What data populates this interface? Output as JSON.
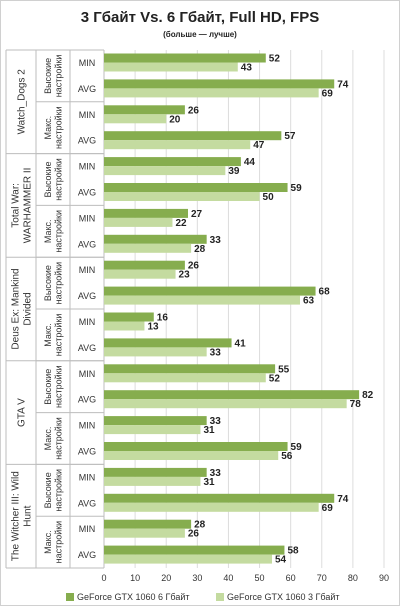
{
  "chart_data": {
    "type": "bar",
    "orientation": "horizontal",
    "title": "3 Гбайт Vs. 6 Гбайт, Full HD, FPS",
    "subtitle": "(больше — лучше)",
    "xlim": [
      0,
      90
    ],
    "xticks": [
      0,
      10,
      20,
      30,
      40,
      50,
      60,
      70,
      80,
      90
    ],
    "grid": true,
    "legend_position": "bottom",
    "colors": {
      "series_6gb": "#86ad4e",
      "series_3gb": "#c4dba0"
    },
    "series": [
      {
        "name": "GeForce GTX 1060 6 Гбайт"
      },
      {
        "name": "GeForce GTX 1060 3 Гбайт"
      }
    ],
    "games": [
      {
        "name": [
          "Watch_Dogs 2"
        ],
        "settings": [
          {
            "label": [
              "Высокие",
              "настройки"
            ],
            "rows": [
              {
                "metric": "MIN",
                "values": [
                  52,
                  43
                ]
              },
              {
                "metric": "AVG",
                "values": [
                  74,
                  69
                ]
              }
            ]
          },
          {
            "label": [
              "Макс.",
              "настройки"
            ],
            "rows": [
              {
                "metric": "MIN",
                "values": [
                  26,
                  20
                ]
              },
              {
                "metric": "AVG",
                "values": [
                  57,
                  47
                ]
              }
            ]
          }
        ]
      },
      {
        "name": [
          "Total War:",
          "WARHAMMER II"
        ],
        "settings": [
          {
            "label": [
              "Высокие",
              "настройки"
            ],
            "rows": [
              {
                "metric": "MIN",
                "values": [
                  44,
                  39
                ]
              },
              {
                "metric": "AVG",
                "values": [
                  59,
                  50
                ]
              }
            ]
          },
          {
            "label": [
              "Макс.",
              "настройки"
            ],
            "rows": [
              {
                "metric": "MIN",
                "values": [
                  27,
                  22
                ]
              },
              {
                "metric": "AVG",
                "values": [
                  33,
                  28
                ]
              }
            ]
          }
        ]
      },
      {
        "name": [
          "Deus Ex: Mankind",
          "Divided"
        ],
        "settings": [
          {
            "label": [
              "Высокие",
              "настройки"
            ],
            "rows": [
              {
                "metric": "MIN",
                "values": [
                  26,
                  23
                ]
              },
              {
                "metric": "AVG",
                "values": [
                  68,
                  63
                ]
              }
            ]
          },
          {
            "label": [
              "Макс.",
              "настройки"
            ],
            "rows": [
              {
                "metric": "MIN",
                "values": [
                  16,
                  13
                ]
              },
              {
                "metric": "AVG",
                "values": [
                  41,
                  33
                ]
              }
            ]
          }
        ]
      },
      {
        "name": [
          "GTA V"
        ],
        "settings": [
          {
            "label": [
              "Высокие",
              "настройки"
            ],
            "rows": [
              {
                "metric": "MIN",
                "values": [
                  55,
                  52
                ]
              },
              {
                "metric": "AVG",
                "values": [
                  82,
                  78
                ]
              }
            ]
          },
          {
            "label": [
              "Макс.",
              "настройки"
            ],
            "rows": [
              {
                "metric": "MIN",
                "values": [
                  33,
                  31
                ]
              },
              {
                "metric": "AVG",
                "values": [
                  59,
                  56
                ]
              }
            ]
          }
        ]
      },
      {
        "name": [
          "The Witcher III: Wild",
          "Hunt"
        ],
        "settings": [
          {
            "label": [
              "Высокие",
              "настройки"
            ],
            "rows": [
              {
                "metric": "MIN",
                "values": [
                  33,
                  31
                ]
              },
              {
                "metric": "AVG",
                "values": [
                  74,
                  69
                ]
              }
            ]
          },
          {
            "label": [
              "Макс.",
              "настройки"
            ],
            "rows": [
              {
                "metric": "MIN",
                "values": [
                  28,
                  26
                ]
              },
              {
                "metric": "AVG",
                "values": [
                  58,
                  54
                ]
              }
            ]
          }
        ]
      }
    ]
  }
}
